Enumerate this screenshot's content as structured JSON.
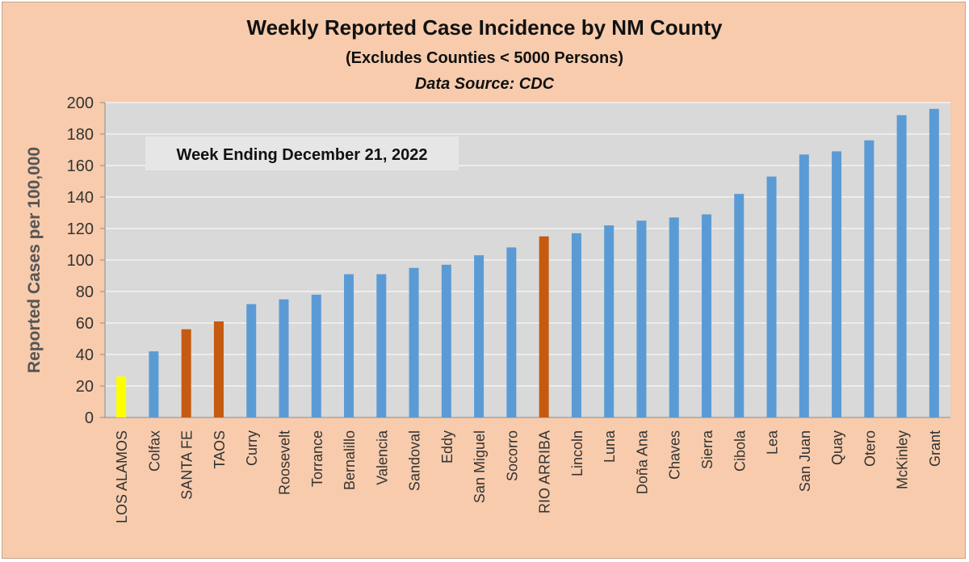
{
  "chart_data": {
    "type": "bar",
    "title": "Weekly Reported Case Incidence by NM County",
    "subtitle": "(Excludes Counties < 5000 Persons)",
    "source": "Data Source: CDC",
    "annotation": "Week Ending December 21, 2022",
    "xlabel": "",
    "ylabel": "Reported Cases per 100,000",
    "ylim": [
      0,
      200
    ],
    "yticks": [
      0,
      20,
      40,
      60,
      80,
      100,
      120,
      140,
      160,
      180,
      200
    ],
    "grid": true,
    "categories": [
      "LOS ALAMOS",
      "Colfax",
      "SANTA FE",
      "TAOS",
      "Curry",
      "Roosevelt",
      "Torrance",
      "Bernalillo",
      "Valencia",
      "Sandoval",
      "Eddy",
      "San Miguel",
      "Socorro",
      "RIO ARRIBA",
      "Lincoln",
      "Luna",
      "Doña Ana",
      "Chaves",
      "Sierra",
      "Cibola",
      "Lea",
      "San Juan",
      "Quay",
      "Otero",
      "McKinley",
      "Grant"
    ],
    "values": [
      26,
      42,
      56,
      61,
      72,
      75,
      78,
      91,
      91,
      95,
      97,
      103,
      108,
      115,
      117,
      122,
      125,
      127,
      129,
      142,
      153,
      167,
      169,
      176,
      192,
      196
    ],
    "colors": {
      "default": "#5b9bd5",
      "highlight": "#c55a11",
      "primary": "#ffff00",
      "plot_background": "#d9d9d9",
      "gridline": "#ffffff",
      "annotation_background": "#e7e6e6"
    },
    "highlight_categories": [
      "SANTA FE",
      "TAOS",
      "RIO ARRIBA"
    ],
    "primary_category": "LOS ALAMOS"
  }
}
